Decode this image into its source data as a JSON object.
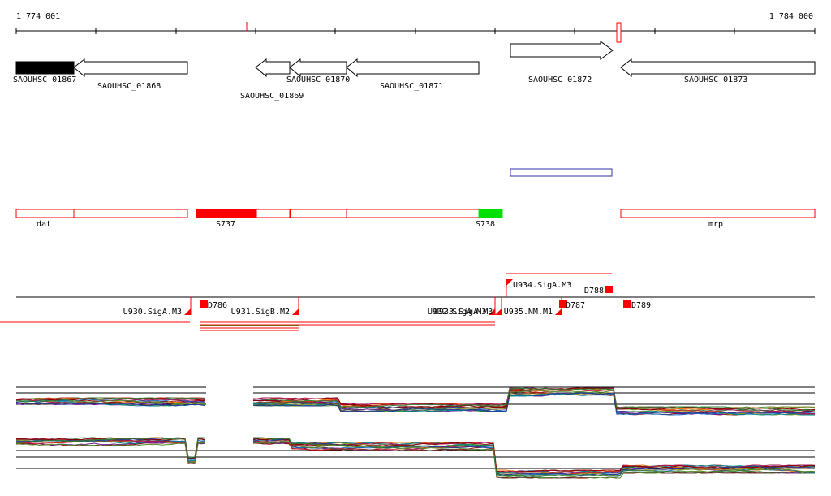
{
  "ruler": {
    "start_label": "1 774 001",
    "end_label": "1 784 000"
  },
  "genes": [
    {
      "label": "SAOUHSC_01867",
      "strand": "-",
      "filled": true
    },
    {
      "label": "SAOUHSC_01868",
      "strand": "-",
      "filled": false
    },
    {
      "label": "SAOUHSC_01869",
      "strand": "-",
      "filled": false
    },
    {
      "label": "SAOUHSC_01870",
      "strand": "-",
      "filled": false
    },
    {
      "label": "SAOUHSC_01871",
      "strand": "-",
      "filled": false
    },
    {
      "label": "SAOUHSC_01872",
      "strand": "+",
      "filled": false
    },
    {
      "label": "SAOUHSC_01873",
      "strand": "-",
      "filled": false
    }
  ],
  "segments": [
    {
      "label": "dat"
    },
    {
      "label": "S737"
    },
    {
      "label": "S738"
    },
    {
      "label": "mrp"
    }
  ],
  "features": [
    {
      "label": "D786"
    },
    {
      "label": "D787"
    },
    {
      "label": "D788"
    },
    {
      "label": "D789"
    },
    {
      "label": "U930.SigA.M3"
    },
    {
      "label": "U931.SigB.M2"
    },
    {
      "label": "U932.SigA.M3"
    },
    {
      "label": "U933.SigA.M3"
    },
    {
      "label": "U934.SigA.M3"
    },
    {
      "label": "U935.NM.M1"
    }
  ],
  "colors": {
    "feature_red": "#ff0000",
    "segment_green": "#00e000",
    "region_blue": "#3333aa",
    "ruler": "#000000"
  }
}
